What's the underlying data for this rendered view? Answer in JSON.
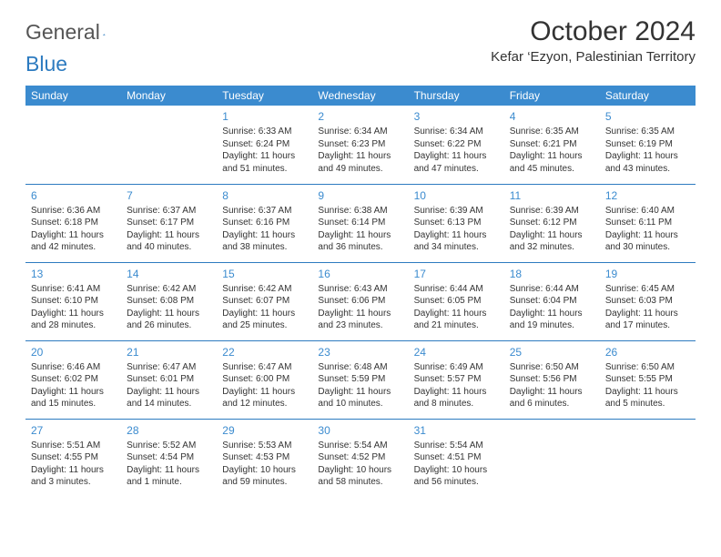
{
  "logo": {
    "text1": "General",
    "text2": "Blue"
  },
  "title": "October 2024",
  "location": "Kefar ‘Ezyon, Palestinian Territory",
  "colors": {
    "header_bg": "#3b8bcf",
    "header_text": "#ffffff",
    "accent": "#2d7bc0",
    "body_text": "#333333",
    "background": "#ffffff"
  },
  "weekdays": [
    "Sunday",
    "Monday",
    "Tuesday",
    "Wednesday",
    "Thursday",
    "Friday",
    "Saturday"
  ],
  "weeks": [
    [
      null,
      null,
      {
        "n": "1",
        "sr": "Sunrise: 6:33 AM",
        "ss": "Sunset: 6:24 PM",
        "d1": "Daylight: 11 hours",
        "d2": "and 51 minutes."
      },
      {
        "n": "2",
        "sr": "Sunrise: 6:34 AM",
        "ss": "Sunset: 6:23 PM",
        "d1": "Daylight: 11 hours",
        "d2": "and 49 minutes."
      },
      {
        "n": "3",
        "sr": "Sunrise: 6:34 AM",
        "ss": "Sunset: 6:22 PM",
        "d1": "Daylight: 11 hours",
        "d2": "and 47 minutes."
      },
      {
        "n": "4",
        "sr": "Sunrise: 6:35 AM",
        "ss": "Sunset: 6:21 PM",
        "d1": "Daylight: 11 hours",
        "d2": "and 45 minutes."
      },
      {
        "n": "5",
        "sr": "Sunrise: 6:35 AM",
        "ss": "Sunset: 6:19 PM",
        "d1": "Daylight: 11 hours",
        "d2": "and 43 minutes."
      }
    ],
    [
      {
        "n": "6",
        "sr": "Sunrise: 6:36 AM",
        "ss": "Sunset: 6:18 PM",
        "d1": "Daylight: 11 hours",
        "d2": "and 42 minutes."
      },
      {
        "n": "7",
        "sr": "Sunrise: 6:37 AM",
        "ss": "Sunset: 6:17 PM",
        "d1": "Daylight: 11 hours",
        "d2": "and 40 minutes."
      },
      {
        "n": "8",
        "sr": "Sunrise: 6:37 AM",
        "ss": "Sunset: 6:16 PM",
        "d1": "Daylight: 11 hours",
        "d2": "and 38 minutes."
      },
      {
        "n": "9",
        "sr": "Sunrise: 6:38 AM",
        "ss": "Sunset: 6:14 PM",
        "d1": "Daylight: 11 hours",
        "d2": "and 36 minutes."
      },
      {
        "n": "10",
        "sr": "Sunrise: 6:39 AM",
        "ss": "Sunset: 6:13 PM",
        "d1": "Daylight: 11 hours",
        "d2": "and 34 minutes."
      },
      {
        "n": "11",
        "sr": "Sunrise: 6:39 AM",
        "ss": "Sunset: 6:12 PM",
        "d1": "Daylight: 11 hours",
        "d2": "and 32 minutes."
      },
      {
        "n": "12",
        "sr": "Sunrise: 6:40 AM",
        "ss": "Sunset: 6:11 PM",
        "d1": "Daylight: 11 hours",
        "d2": "and 30 minutes."
      }
    ],
    [
      {
        "n": "13",
        "sr": "Sunrise: 6:41 AM",
        "ss": "Sunset: 6:10 PM",
        "d1": "Daylight: 11 hours",
        "d2": "and 28 minutes."
      },
      {
        "n": "14",
        "sr": "Sunrise: 6:42 AM",
        "ss": "Sunset: 6:08 PM",
        "d1": "Daylight: 11 hours",
        "d2": "and 26 minutes."
      },
      {
        "n": "15",
        "sr": "Sunrise: 6:42 AM",
        "ss": "Sunset: 6:07 PM",
        "d1": "Daylight: 11 hours",
        "d2": "and 25 minutes."
      },
      {
        "n": "16",
        "sr": "Sunrise: 6:43 AM",
        "ss": "Sunset: 6:06 PM",
        "d1": "Daylight: 11 hours",
        "d2": "and 23 minutes."
      },
      {
        "n": "17",
        "sr": "Sunrise: 6:44 AM",
        "ss": "Sunset: 6:05 PM",
        "d1": "Daylight: 11 hours",
        "d2": "and 21 minutes."
      },
      {
        "n": "18",
        "sr": "Sunrise: 6:44 AM",
        "ss": "Sunset: 6:04 PM",
        "d1": "Daylight: 11 hours",
        "d2": "and 19 minutes."
      },
      {
        "n": "19",
        "sr": "Sunrise: 6:45 AM",
        "ss": "Sunset: 6:03 PM",
        "d1": "Daylight: 11 hours",
        "d2": "and 17 minutes."
      }
    ],
    [
      {
        "n": "20",
        "sr": "Sunrise: 6:46 AM",
        "ss": "Sunset: 6:02 PM",
        "d1": "Daylight: 11 hours",
        "d2": "and 15 minutes."
      },
      {
        "n": "21",
        "sr": "Sunrise: 6:47 AM",
        "ss": "Sunset: 6:01 PM",
        "d1": "Daylight: 11 hours",
        "d2": "and 14 minutes."
      },
      {
        "n": "22",
        "sr": "Sunrise: 6:47 AM",
        "ss": "Sunset: 6:00 PM",
        "d1": "Daylight: 11 hours",
        "d2": "and 12 minutes."
      },
      {
        "n": "23",
        "sr": "Sunrise: 6:48 AM",
        "ss": "Sunset: 5:59 PM",
        "d1": "Daylight: 11 hours",
        "d2": "and 10 minutes."
      },
      {
        "n": "24",
        "sr": "Sunrise: 6:49 AM",
        "ss": "Sunset: 5:57 PM",
        "d1": "Daylight: 11 hours",
        "d2": "and 8 minutes."
      },
      {
        "n": "25",
        "sr": "Sunrise: 6:50 AM",
        "ss": "Sunset: 5:56 PM",
        "d1": "Daylight: 11 hours",
        "d2": "and 6 minutes."
      },
      {
        "n": "26",
        "sr": "Sunrise: 6:50 AM",
        "ss": "Sunset: 5:55 PM",
        "d1": "Daylight: 11 hours",
        "d2": "and 5 minutes."
      }
    ],
    [
      {
        "n": "27",
        "sr": "Sunrise: 5:51 AM",
        "ss": "Sunset: 4:55 PM",
        "d1": "Daylight: 11 hours",
        "d2": "and 3 minutes."
      },
      {
        "n": "28",
        "sr": "Sunrise: 5:52 AM",
        "ss": "Sunset: 4:54 PM",
        "d1": "Daylight: 11 hours",
        "d2": "and 1 minute."
      },
      {
        "n": "29",
        "sr": "Sunrise: 5:53 AM",
        "ss": "Sunset: 4:53 PM",
        "d1": "Daylight: 10 hours",
        "d2": "and 59 minutes."
      },
      {
        "n": "30",
        "sr": "Sunrise: 5:54 AM",
        "ss": "Sunset: 4:52 PM",
        "d1": "Daylight: 10 hours",
        "d2": "and 58 minutes."
      },
      {
        "n": "31",
        "sr": "Sunrise: 5:54 AM",
        "ss": "Sunset: 4:51 PM",
        "d1": "Daylight: 10 hours",
        "d2": "and 56 minutes."
      },
      null,
      null
    ]
  ]
}
